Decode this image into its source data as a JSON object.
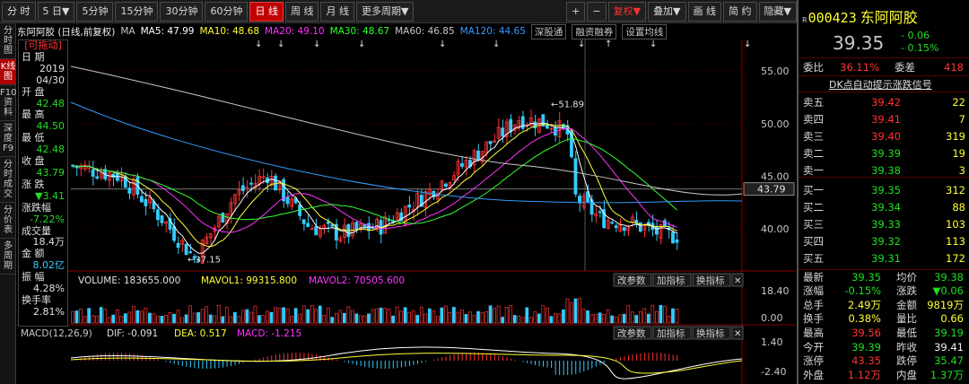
{
  "toolbar": {
    "left_buttons": [
      {
        "label": "分 时",
        "active": false
      },
      {
        "label": "5 日▼",
        "active": false
      },
      {
        "label": "5分钟",
        "active": false
      },
      {
        "label": "15分钟",
        "active": false
      },
      {
        "label": "30分钟",
        "active": false
      },
      {
        "label": "60分钟",
        "active": false
      },
      {
        "label": "日 线",
        "active": true
      },
      {
        "label": "周 线",
        "active": false
      },
      {
        "label": "月 线",
        "active": false
      },
      {
        "label": "更多周期▼",
        "active": false
      }
    ],
    "right_buttons": [
      {
        "label": "+",
        "active": false
      },
      {
        "label": "−",
        "active": false
      },
      {
        "label": "复权▼",
        "active": false,
        "red": true
      },
      {
        "label": "叠加▼",
        "active": false
      },
      {
        "label": "画 线",
        "active": false
      },
      {
        "label": "简 约",
        "active": false
      },
      {
        "label": "隐藏▼",
        "active": false
      }
    ]
  },
  "left_tabs": [
    {
      "label": "分时图",
      "active": false
    },
    {
      "label": "K线图",
      "active": true
    },
    {
      "label": "F10资料",
      "active": false
    },
    {
      "label": "深度F9",
      "active": false
    },
    {
      "label": "分时成交",
      "active": false
    },
    {
      "label": "分价表",
      "active": false
    },
    {
      "label": "多周期",
      "active": false
    }
  ],
  "info_bar": {
    "stock": "东阿阿胶 (日线,前复权)",
    "ma_label": "MA",
    "ma5": "MA5: 47.99",
    "ma10": "MA10: 48.68",
    "ma20": "MA20: 49.10",
    "ma30": "MA30: 48.67",
    "ma60": "MA60: 46.85",
    "ma120": "MA120: 44.65",
    "tab1": "深股通",
    "tab2": "融资融券",
    "tab3": "设置均线",
    "colors": {
      "ma5": "#ffffff",
      "ma10": "#ffff33",
      "ma20": "#ff33ff",
      "ma30": "#33ff33",
      "ma60": "#c8c8c8",
      "ma120": "#3399ff"
    }
  },
  "data_window": {
    "title": "[可拖动]",
    "rows": [
      {
        "label": "日  期",
        "value": "2019",
        "color": "#e0e0e0"
      },
      {
        "label": "",
        "value": "04/30",
        "color": "#e0e0e0"
      },
      {
        "label": "开  盘",
        "value": "42.48",
        "color": "#22dd22"
      },
      {
        "label": "最  高",
        "value": "44.50",
        "color": "#22dd22"
      },
      {
        "label": "最  低",
        "value": "42.48",
        "color": "#22dd22"
      },
      {
        "label": "收  盘",
        "value": "43.79",
        "color": "#22dd22"
      },
      {
        "label": "涨  跌",
        "value": "▼3.41",
        "color": "#22dd22"
      },
      {
        "label": "涨跌幅",
        "value": "-7.22%",
        "color": "#22dd22"
      },
      {
        "label": "成交量",
        "value": "18.4万",
        "color": "#e0e0e0"
      },
      {
        "label": "金  额",
        "value": "8.02亿",
        "color": "#33ccff"
      },
      {
        "label": "振  幅",
        "value": "4.28%",
        "color": "#e0e0e0"
      },
      {
        "label": "换手率",
        "value": "2.81%",
        "color": "#e0e0e0"
      }
    ]
  },
  "volume_bar": {
    "label": "VOLUME: 183655.000",
    "mavol1": "MAVOL1: 99315.800",
    "mavol2": "MAVOL2: 70505.600",
    "btn1": "改参数",
    "btn2": "加指标",
    "btn3": "换指标"
  },
  "macd_bar": {
    "name": "MACD(12,26,9)",
    "dif": "DIF: -0.091",
    "dea": "DEA: 0.517",
    "macd": "MACD: -1.215"
  },
  "price_axis": {
    "ticks": [
      "55.00",
      "50.00",
      "45.00",
      "40.00"
    ],
    "current": "43.79",
    "high_marker": "51.89",
    "low_marker": "37.15"
  },
  "vol_axis": {
    "ticks": [
      "18.40",
      "0.00"
    ]
  },
  "macd_axis": {
    "ticks": [
      "1.40",
      "-2.40"
    ]
  },
  "quote": {
    "code": "000423",
    "name": "东阿阿胶",
    "price": "39.35",
    "change": "- 0.06",
    "change_pct": "- 0.15%",
    "weibi_label": "委比",
    "weibi": "36.11%",
    "weicha_label": "委差",
    "weicha": "418",
    "dk_link": "DK点自动提示涨跌信号",
    "asks": [
      {
        "label": "卖五",
        "price": "39.42",
        "vol": "22",
        "color": "#ff3333"
      },
      {
        "label": "卖四",
        "price": "39.41",
        "vol": "7",
        "color": "#ff3333"
      },
      {
        "label": "卖三",
        "price": "39.40",
        "vol": "319",
        "color": "#ff3333"
      },
      {
        "label": "卖二",
        "price": "39.39",
        "vol": "19",
        "color": "#22dd22"
      },
      {
        "label": "卖一",
        "price": "39.38",
        "vol": "3",
        "color": "#22dd22"
      }
    ],
    "bids": [
      {
        "label": "买一",
        "price": "39.35",
        "vol": "312",
        "color": "#22dd22"
      },
      {
        "label": "买二",
        "price": "39.34",
        "vol": "88",
        "color": "#22dd22"
      },
      {
        "label": "买三",
        "price": "39.33",
        "vol": "103",
        "color": "#22dd22"
      },
      {
        "label": "买四",
        "price": "39.32",
        "vol": "113",
        "color": "#22dd22"
      },
      {
        "label": "买五",
        "price": "39.31",
        "vol": "172",
        "color": "#22dd22"
      }
    ],
    "stats": [
      {
        "l1": "最新",
        "v1": "39.35",
        "c1": "#22dd22",
        "l2": "均价",
        "v2": "39.38",
        "c2": "#22dd22"
      },
      {
        "l1": "涨幅",
        "v1": "-0.15%",
        "c1": "#22dd22",
        "l2": "涨跌",
        "v2": "▼0.06",
        "c2": "#22dd22"
      },
      {
        "l1": "总手",
        "v1": "2.49万",
        "c1": "#ffff33",
        "l2": "金额",
        "v2": "9819万",
        "c2": "#ffff33"
      },
      {
        "l1": "换手",
        "v1": "0.38%",
        "c1": "#ffff33",
        "l2": "量比",
        "v2": "0.66",
        "c2": "#ffff33"
      },
      {
        "l1": "最高",
        "v1": "39.56",
        "c1": "#ff3333",
        "l2": "最低",
        "v2": "39.19",
        "c2": "#22dd22"
      },
      {
        "l1": "今开",
        "v1": "39.39",
        "c1": "#22dd22",
        "l2": "昨收",
        "v2": "39.41",
        "c2": "#f0f0f0"
      },
      {
        "l1": "涨停",
        "v1": "43.35",
        "c1": "#ff3333",
        "l2": "跌停",
        "v2": "35.47",
        "c2": "#22dd22"
      },
      {
        "l1": "外盘",
        "v1": "1.12万",
        "c1": "#ff3333",
        "l2": "内盘",
        "v2": "1.37万",
        "c2": "#22dd22"
      }
    ]
  },
  "chart_data": {
    "type": "candlestick",
    "symbol": "000423",
    "ylim": [
      36,
      58
    ],
    "high": 51.89,
    "low": 37.15,
    "current_line": 43.79
  }
}
